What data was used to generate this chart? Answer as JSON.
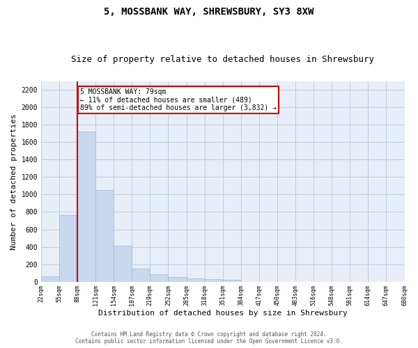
{
  "title": "5, MOSSBANK WAY, SHREWSBURY, SY3 8XW",
  "subtitle": "Size of property relative to detached houses in Shrewsbury",
  "xlabel": "Distribution of detached houses by size in Shrewsbury",
  "ylabel": "Number of detached properties",
  "bar_values": [
    60,
    760,
    1720,
    1055,
    415,
    150,
    85,
    50,
    40,
    30,
    20,
    0,
    0,
    0,
    0,
    0,
    0,
    0,
    0,
    0
  ],
  "bar_labels": [
    "22sqm",
    "55sqm",
    "88sqm",
    "121sqm",
    "154sqm",
    "187sqm",
    "219sqm",
    "252sqm",
    "285sqm",
    "318sqm",
    "351sqm",
    "384sqm",
    "417sqm",
    "450sqm",
    "483sqm",
    "516sqm",
    "548sqm",
    "581sqm",
    "614sqm",
    "647sqm",
    "680sqm"
  ],
  "bar_color": "#c8d8ee",
  "bar_edge_color": "#a0b8d8",
  "vline_x_index": 2,
  "vline_color": "#cc0000",
  "annotation_text": "5 MOSSBANK WAY: 79sqm\n← 11% of detached houses are smaller (489)\n89% of semi-detached houses are larger (3,832) →",
  "annotation_box_color": "#ffffff",
  "annotation_box_edge": "#cc0000",
  "ylim": [
    0,
    2300
  ],
  "yticks": [
    0,
    200,
    400,
    600,
    800,
    1000,
    1200,
    1400,
    1600,
    1800,
    2000,
    2200
  ],
  "plot_background": "#e8eef8",
  "footer_line1": "Contains HM Land Registry data © Crown copyright and database right 2024.",
  "footer_line2": "Contains public sector information licensed under the Open Government Licence v3.0.",
  "title_fontsize": 10,
  "subtitle_fontsize": 9,
  "xlabel_fontsize": 8,
  "ylabel_fontsize": 8
}
